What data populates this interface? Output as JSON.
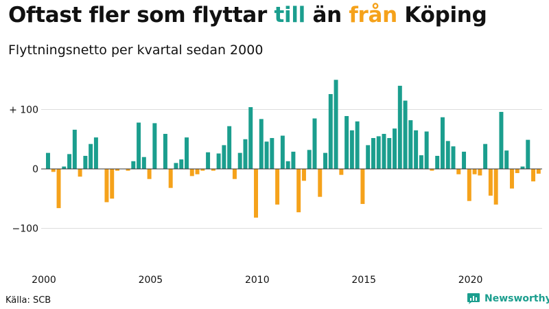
{
  "title": {
    "part1": "Oftast fler som flyttar ",
    "till": "till",
    "part2": " än ",
    "fran": "från",
    "part3": " Köping"
  },
  "subtitle": "Flyttningsnetto per kvartal sedan 2000",
  "source": "Källa: SCB",
  "logo_text": "Newsworthy",
  "colors": {
    "positive": "#1b9e8e",
    "negative": "#f5a21b",
    "grid": "#dddddd",
    "zero": "#333333"
  },
  "chart_data": {
    "type": "bar",
    "title": "Oftast fler som flyttar till än från Köping",
    "subtitle": "Flyttningsnetto per kvartal sedan 2000",
    "xlabel": "",
    "ylabel": "",
    "start": "2000 Q1",
    "ylim": [
      -160,
      160
    ],
    "yticks": [
      {
        "value": 100,
        "label": "+ 100"
      },
      {
        "value": 0,
        "label": "0"
      },
      {
        "value": -100,
        "label": "−100"
      }
    ],
    "xticks": [
      "2000",
      "2005",
      "2010",
      "2015",
      "2020"
    ],
    "grid": true,
    "values": [
      27,
      -5,
      -66,
      4,
      25,
      66,
      -13,
      22,
      42,
      53,
      0,
      -56,
      -50,
      -3,
      0,
      -3,
      13,
      78,
      20,
      -17,
      77,
      0,
      59,
      -32,
      10,
      16,
      53,
      -12,
      -9,
      -3,
      28,
      -3,
      26,
      40,
      72,
      -17,
      27,
      50,
      104,
      -82,
      84,
      46,
      52,
      -60,
      56,
      13,
      29,
      -73,
      -20,
      32,
      85,
      -47,
      27,
      126,
      150,
      -10,
      89,
      65,
      80,
      -59,
      40,
      52,
      55,
      59,
      52,
      68,
      140,
      115,
      82,
      65,
      23,
      63,
      -3,
      22,
      87,
      47,
      38,
      -9,
      29,
      -54,
      -9,
      -11,
      42,
      -45,
      -60,
      96,
      31,
      -33,
      -7,
      4,
      49,
      -21,
      -8
    ]
  }
}
